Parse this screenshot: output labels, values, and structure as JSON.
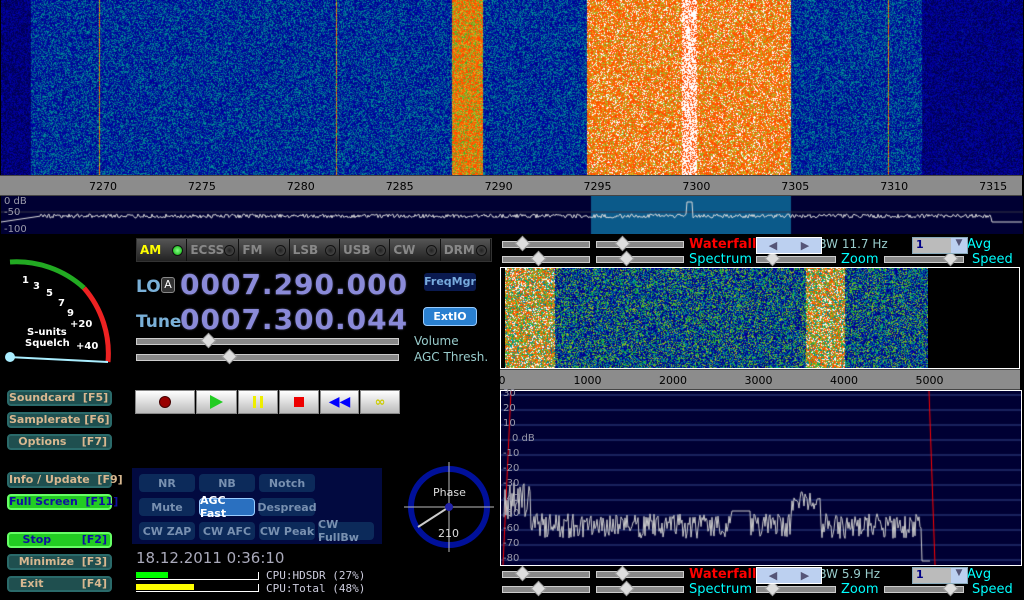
{
  "main_scale": {
    "ticks": [
      "7270",
      "7275",
      "7280",
      "7285",
      "7290",
      "7295",
      "7300",
      "7305",
      "7310",
      "7315"
    ]
  },
  "main_spectrum": {
    "db_labels": [
      "0 dB",
      "-50",
      "-100"
    ]
  },
  "modes": [
    {
      "label": "AM",
      "active": true
    },
    {
      "label": "ECSS",
      "active": false
    },
    {
      "label": "FM",
      "active": false
    },
    {
      "label": "LSB",
      "active": false
    },
    {
      "label": "USB",
      "active": false
    },
    {
      "label": "CW",
      "active": false
    },
    {
      "label": "DRM",
      "active": false
    }
  ],
  "smeter": {
    "scale": [
      "1",
      "3",
      "5",
      "7",
      "9",
      "+20",
      "+40"
    ],
    "label1": "S-units",
    "label2": "Squelch"
  },
  "lo": {
    "label": "LO",
    "badge": "A",
    "value": "0007.290.000"
  },
  "tune": {
    "label": "Tune",
    "value": "0007.300.044"
  },
  "buttons": {
    "freqmgr": "FreqMgr",
    "extio": "ExtIO"
  },
  "sliders": {
    "volume": "Volume",
    "agc": "AGC Thresh."
  },
  "side_buttons": [
    {
      "label": "Soundcard  [F5]",
      "green": false
    },
    {
      "label": "Samplerate [F6]",
      "green": false
    },
    {
      "label": "Options    [F7]",
      "green": false
    },
    {
      "label": "Info / Update  [F9]",
      "green": false
    },
    {
      "label": "Full Screen  [F11]",
      "green": true
    },
    {
      "label": "Stop        [F2]",
      "green": true
    },
    {
      "label": "Minimize  [F3]",
      "green": false
    },
    {
      "label": "Exit          [F4]",
      "green": false
    }
  ],
  "transport": [
    "record",
    "play",
    "pause",
    "stop",
    "rewind",
    "loop"
  ],
  "dsp": [
    {
      "label": "NR",
      "on": false
    },
    {
      "label": "NB",
      "on": false
    },
    {
      "label": "Notch",
      "on": false
    },
    {
      "label": "Mute",
      "on": false
    },
    {
      "label": "AGC Fast",
      "on": true
    },
    {
      "label": "Despread",
      "on": false
    },
    {
      "label": "CW ZAP",
      "on": false
    },
    {
      "label": "CW AFC",
      "on": false
    },
    {
      "label": "CW Peak",
      "on": false
    },
    {
      "label": "CW FullBw",
      "on": false
    }
  ],
  "phase": {
    "label": "Phase",
    "value": "210"
  },
  "datetime": "18.12.2011 0:36:10",
  "cpu": [
    {
      "label": "CPU:HDSDR (27%)",
      "percent": 27,
      "color": "#00ff00"
    },
    {
      "label": "CPU:Total (48%)",
      "percent": 48,
      "color": "#ffff00"
    }
  ],
  "top_controls": {
    "waterfall": "Waterfall",
    "spectrum": "Spectrum",
    "rbw": "RBW 11.7 Hz",
    "avg_value": "1",
    "avg": "Avg",
    "zoom": "Zoom",
    "speed": "Speed"
  },
  "bottom_controls": {
    "waterfall": "Waterfall",
    "spectrum": "Spectrum",
    "rbw": "RBW  5.9 Hz",
    "avg_value": "1",
    "avg": "Avg",
    "zoom": "Zoom",
    "speed": "Speed"
  },
  "audio_scale": {
    "ticks": [
      "0",
      "1000",
      "2000",
      "3000",
      "4000",
      "5000"
    ]
  },
  "audio_spectrum": {
    "db_labels": [
      "30",
      "20",
      "10",
      "0 dB",
      "-10",
      "-20",
      "-30",
      "-40",
      "-50",
      "-60",
      "-70",
      "-80"
    ]
  },
  "colors": {
    "accent_red": "#ff0000",
    "accent_cyan": "#00ffff",
    "spectrum_bg": "#000033",
    "passband": "#0b5a8a"
  }
}
